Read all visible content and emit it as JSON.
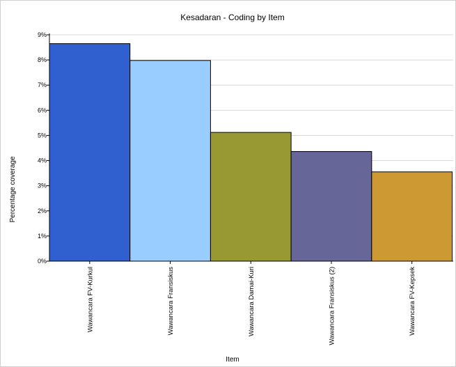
{
  "chart_data": {
    "type": "bar",
    "title": "Kesadaran - Coding by Item",
    "xlabel": "Item",
    "ylabel": "Percentage coverage",
    "categories": [
      "Wawancara FV-Kurkul",
      "Wawancara Fransiskus",
      "Wawancara Damai-Kuri",
      "Wawancara Fransiskus (2)",
      "Wawancara FV-Kepsek"
    ],
    "values": [
      8.65,
      7.98,
      5.12,
      4.36,
      3.55
    ],
    "colors": [
      "#3060d0",
      "#99ccff",
      "#999933",
      "#666699",
      "#cc9933"
    ],
    "ylim": [
      0,
      9
    ],
    "yticks": [
      0,
      1,
      2,
      3,
      4,
      5,
      6,
      7,
      8,
      9
    ],
    "ytick_labels": [
      "0%",
      "1%",
      "2%",
      "3%",
      "4%",
      "5%",
      "6%",
      "7%",
      "8%",
      "9%"
    ],
    "grid": true,
    "legend": "none"
  }
}
